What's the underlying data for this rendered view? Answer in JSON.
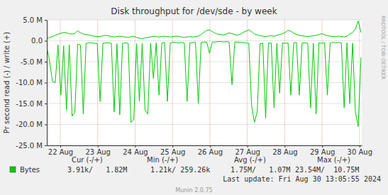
{
  "chart_data": {
    "type": "line",
    "title": "Disk throughput for /dev/sde - by week",
    "ylabel": "Pr second read (-) / write (+)",
    "x": [
      21.64,
      21.715,
      21.79,
      21.865,
      21.94,
      22.015,
      22.09,
      22.165,
      22.24,
      22.315,
      22.39,
      22.465,
      22.54,
      22.615,
      22.69,
      22.765,
      22.84,
      22.915,
      22.99,
      23.065,
      23.14,
      23.215,
      23.29,
      23.365,
      23.44,
      23.515,
      23.59,
      23.665,
      23.74,
      23.815,
      23.89,
      23.965,
      24.04,
      24.115,
      24.19,
      24.265,
      24.34,
      24.415,
      24.49,
      24.565,
      24.64,
      24.715,
      24.79,
      24.865,
      24.94,
      25.015,
      25.09,
      25.165,
      25.24,
      25.315,
      25.39,
      25.465,
      25.54,
      25.615,
      25.69,
      25.765,
      25.84,
      25.915,
      25.99,
      26.065,
      26.14,
      26.215,
      26.29,
      26.365,
      26.44,
      26.515,
      26.59,
      26.665,
      26.74,
      26.815,
      26.89,
      26.965,
      27.04,
      27.115,
      27.19,
      27.265,
      27.34,
      27.415,
      27.49,
      27.565,
      27.64,
      27.715,
      27.79,
      27.865,
      27.94,
      28.015,
      28.09,
      28.165,
      28.24,
      28.315,
      28.39,
      28.465,
      28.54,
      28.615,
      28.69,
      28.765,
      28.84,
      28.915,
      28.99,
      29.065,
      29.14,
      29.215,
      29.29,
      29.365,
      29.44,
      29.515,
      29.59,
      29.665,
      29.74,
      29.815,
      29.89,
      29.965,
      30.04
    ],
    "series": [
      {
        "name": "Bytes",
        "color": "#00cc00",
        "values": [
          500000.0,
          800000.0,
          1000000.0,
          1300000.0,
          1600000.0,
          1800000.0,
          2000000.0,
          1900000.0,
          1700000.0,
          1600000.0,
          1800000.0,
          2400000.0,
          1900000.0,
          1600000.0,
          1500000.0,
          1400000.0,
          1200000.0,
          1100000.0,
          1000000.0,
          1000000.0,
          1200000.0,
          1300000.0,
          1200000.0,
          1000000.0,
          900000.0,
          1000000.0,
          1100000.0,
          1000000.0,
          900000.0,
          800000.0,
          1000000.0,
          1100000.0,
          800000.0,
          600000.0,
          500000.0,
          700000.0,
          800000.0,
          900000.0,
          1100000.0,
          1000000.0,
          900000.0,
          1000000.0,
          1100000.0,
          1000000.0,
          900000.0,
          1000000.0,
          1100000.0,
          1000000.0,
          900000.0,
          800000.0,
          900000.0,
          1000000.0,
          900000.0,
          1000000.0,
          1100000.0,
          1500000.0,
          2000000.0,
          2500000.0,
          2600000.0,
          2200000.0,
          1800000.0,
          1600000.0,
          1500000.0,
          1400000.0,
          1600000.0,
          1900000.0,
          1700000.0,
          1500000.0,
          1300000.0,
          1600000.0,
          2000000.0,
          2300000.0,
          2600000.0,
          2200000.0,
          1600000.0,
          1400000.0,
          1200000.0,
          1100000.0,
          1000000.0,
          1100000.0,
          1200000.0,
          1100000.0,
          1300000.0,
          1500000.0,
          1700000.0,
          2000000.0,
          2500000.0,
          2300000.0,
          1800000.0,
          1500000.0,
          1300000.0,
          1200000.0,
          1100000.0,
          1000000.0,
          1100000.0,
          1200000.0,
          1300000.0,
          1500000.0,
          1700000.0,
          1400000.0,
          1200000.0,
          1100000.0,
          1000000.0,
          1000000.0,
          1100000.0,
          1000000.0,
          900000.0,
          1100000.0,
          1600000.0,
          2000000.0,
          2800000.0,
          4700000.0,
          2000000.0
        ],
        "stats": [
          "3.91k/   1.82M",
          "1.21k/ 259.26k",
          "1.75M/   1.07M",
          "23.54M/  10.75M"
        ]
      },
      {
        "color": "#00cc00",
        "values": [
          -1500000.0,
          -5000000.0,
          -9700000.0,
          -10000000.0,
          -1000000.0,
          -13000000.0,
          -1200000.0,
          -16500000.0,
          -1000000.0,
          -18000000.0,
          -17000000.0,
          -800000.0,
          -1000000.0,
          -17500000.0,
          -600000.0,
          -500000.0,
          -500000.0,
          -600000.0,
          -700000.0,
          -14500000.0,
          -600000.0,
          -500000.0,
          -500000.0,
          -600000.0,
          -17000000.0,
          -700000.0,
          -17700000.0,
          -600000.0,
          -500000.0,
          -600000.0,
          -19500000.0,
          -18800000.0,
          -700000.0,
          -14500000.0,
          -600000.0,
          -16500000.0,
          -17500000.0,
          -600000.0,
          -9000000.0,
          -500000.0,
          -13000000.0,
          -500000.0,
          -400000.0,
          -14500000.0,
          -500000.0,
          -400000.0,
          -400000.0,
          -500000.0,
          -400000.0,
          -500000.0,
          -14500000.0,
          -500000.0,
          -400000.0,
          -400000.0,
          -15000000.0,
          -400000.0,
          -300000.0,
          -300000.0,
          -3000000.0,
          -300000.0,
          -300000.0,
          -200000.0,
          -200000.0,
          -300000.0,
          -200000.0,
          -300000.0,
          -10500000.0,
          -300000.0,
          -300000.0,
          -400000.0,
          -400000.0,
          -500000.0,
          -600000.0,
          -15500000.0,
          -19500000.0,
          -17000000.0,
          -700000.0,
          -600000.0,
          -18500000.0,
          -600000.0,
          -500000.0,
          -16000000.0,
          -600000.0,
          -12500000.0,
          -500000.0,
          -600000.0,
          -500000.0,
          -13000000.0,
          -500000.0,
          -400000.0,
          -13000000.0,
          -500000.0,
          -500000.0,
          -600000.0,
          -16000000.0,
          -600000.0,
          -17500000.0,
          -500000.0,
          -600000.0,
          -500000.0,
          -13000000.0,
          -500000.0,
          -400000.0,
          -500000.0,
          -400000.0,
          -500000.0,
          -16000000.0,
          -500000.0,
          -15000000.0,
          -600000.0,
          -17000000.0,
          -20500000.0,
          -4000000.0
        ]
      }
    ],
    "xlim": [
      21.64,
      30.06
    ],
    "xticks": [
      {
        "value": 22,
        "label": "22 Aug"
      },
      {
        "value": 23,
        "label": "23 Aug"
      },
      {
        "value": 24,
        "label": "24 Aug"
      },
      {
        "value": 25,
        "label": "25 Aug"
      },
      {
        "value": 26,
        "label": "26 Aug"
      },
      {
        "value": 27,
        "label": "27 Aug"
      },
      {
        "value": 28,
        "label": "28 Aug"
      },
      {
        "value": 29,
        "label": "29 Aug"
      },
      {
        "value": 30,
        "label": "30 Aug"
      }
    ],
    "ylim": [
      -25000000.0,
      5000000.0
    ],
    "yticks": [
      {
        "value": 5000000.0,
        "label": "5.0 M"
      },
      {
        "value": 0,
        "label": "0.0"
      },
      {
        "value": -5000000.0,
        "label": "-5.0 M"
      },
      {
        "value": -10000000.0,
        "label": "-10.0 M"
      },
      {
        "value": -15000000.0,
        "label": "-15.0 M"
      },
      {
        "value": -20000000.0,
        "label": "-20.0 M"
      },
      {
        "value": -25000000.0,
        "label": "-25.0 M"
      }
    ],
    "grid": true,
    "legend_headers": [
      "Cur (-/+)",
      "Min (-/+)",
      "Avg (-/+)",
      "Max (-/+)"
    ],
    "last_update": "Last update: Fri Aug 30 13:05:55 2024",
    "footer": "Munin 2.0.75",
    "watermark": "RRDTOOL / TOBI OETIKER"
  }
}
